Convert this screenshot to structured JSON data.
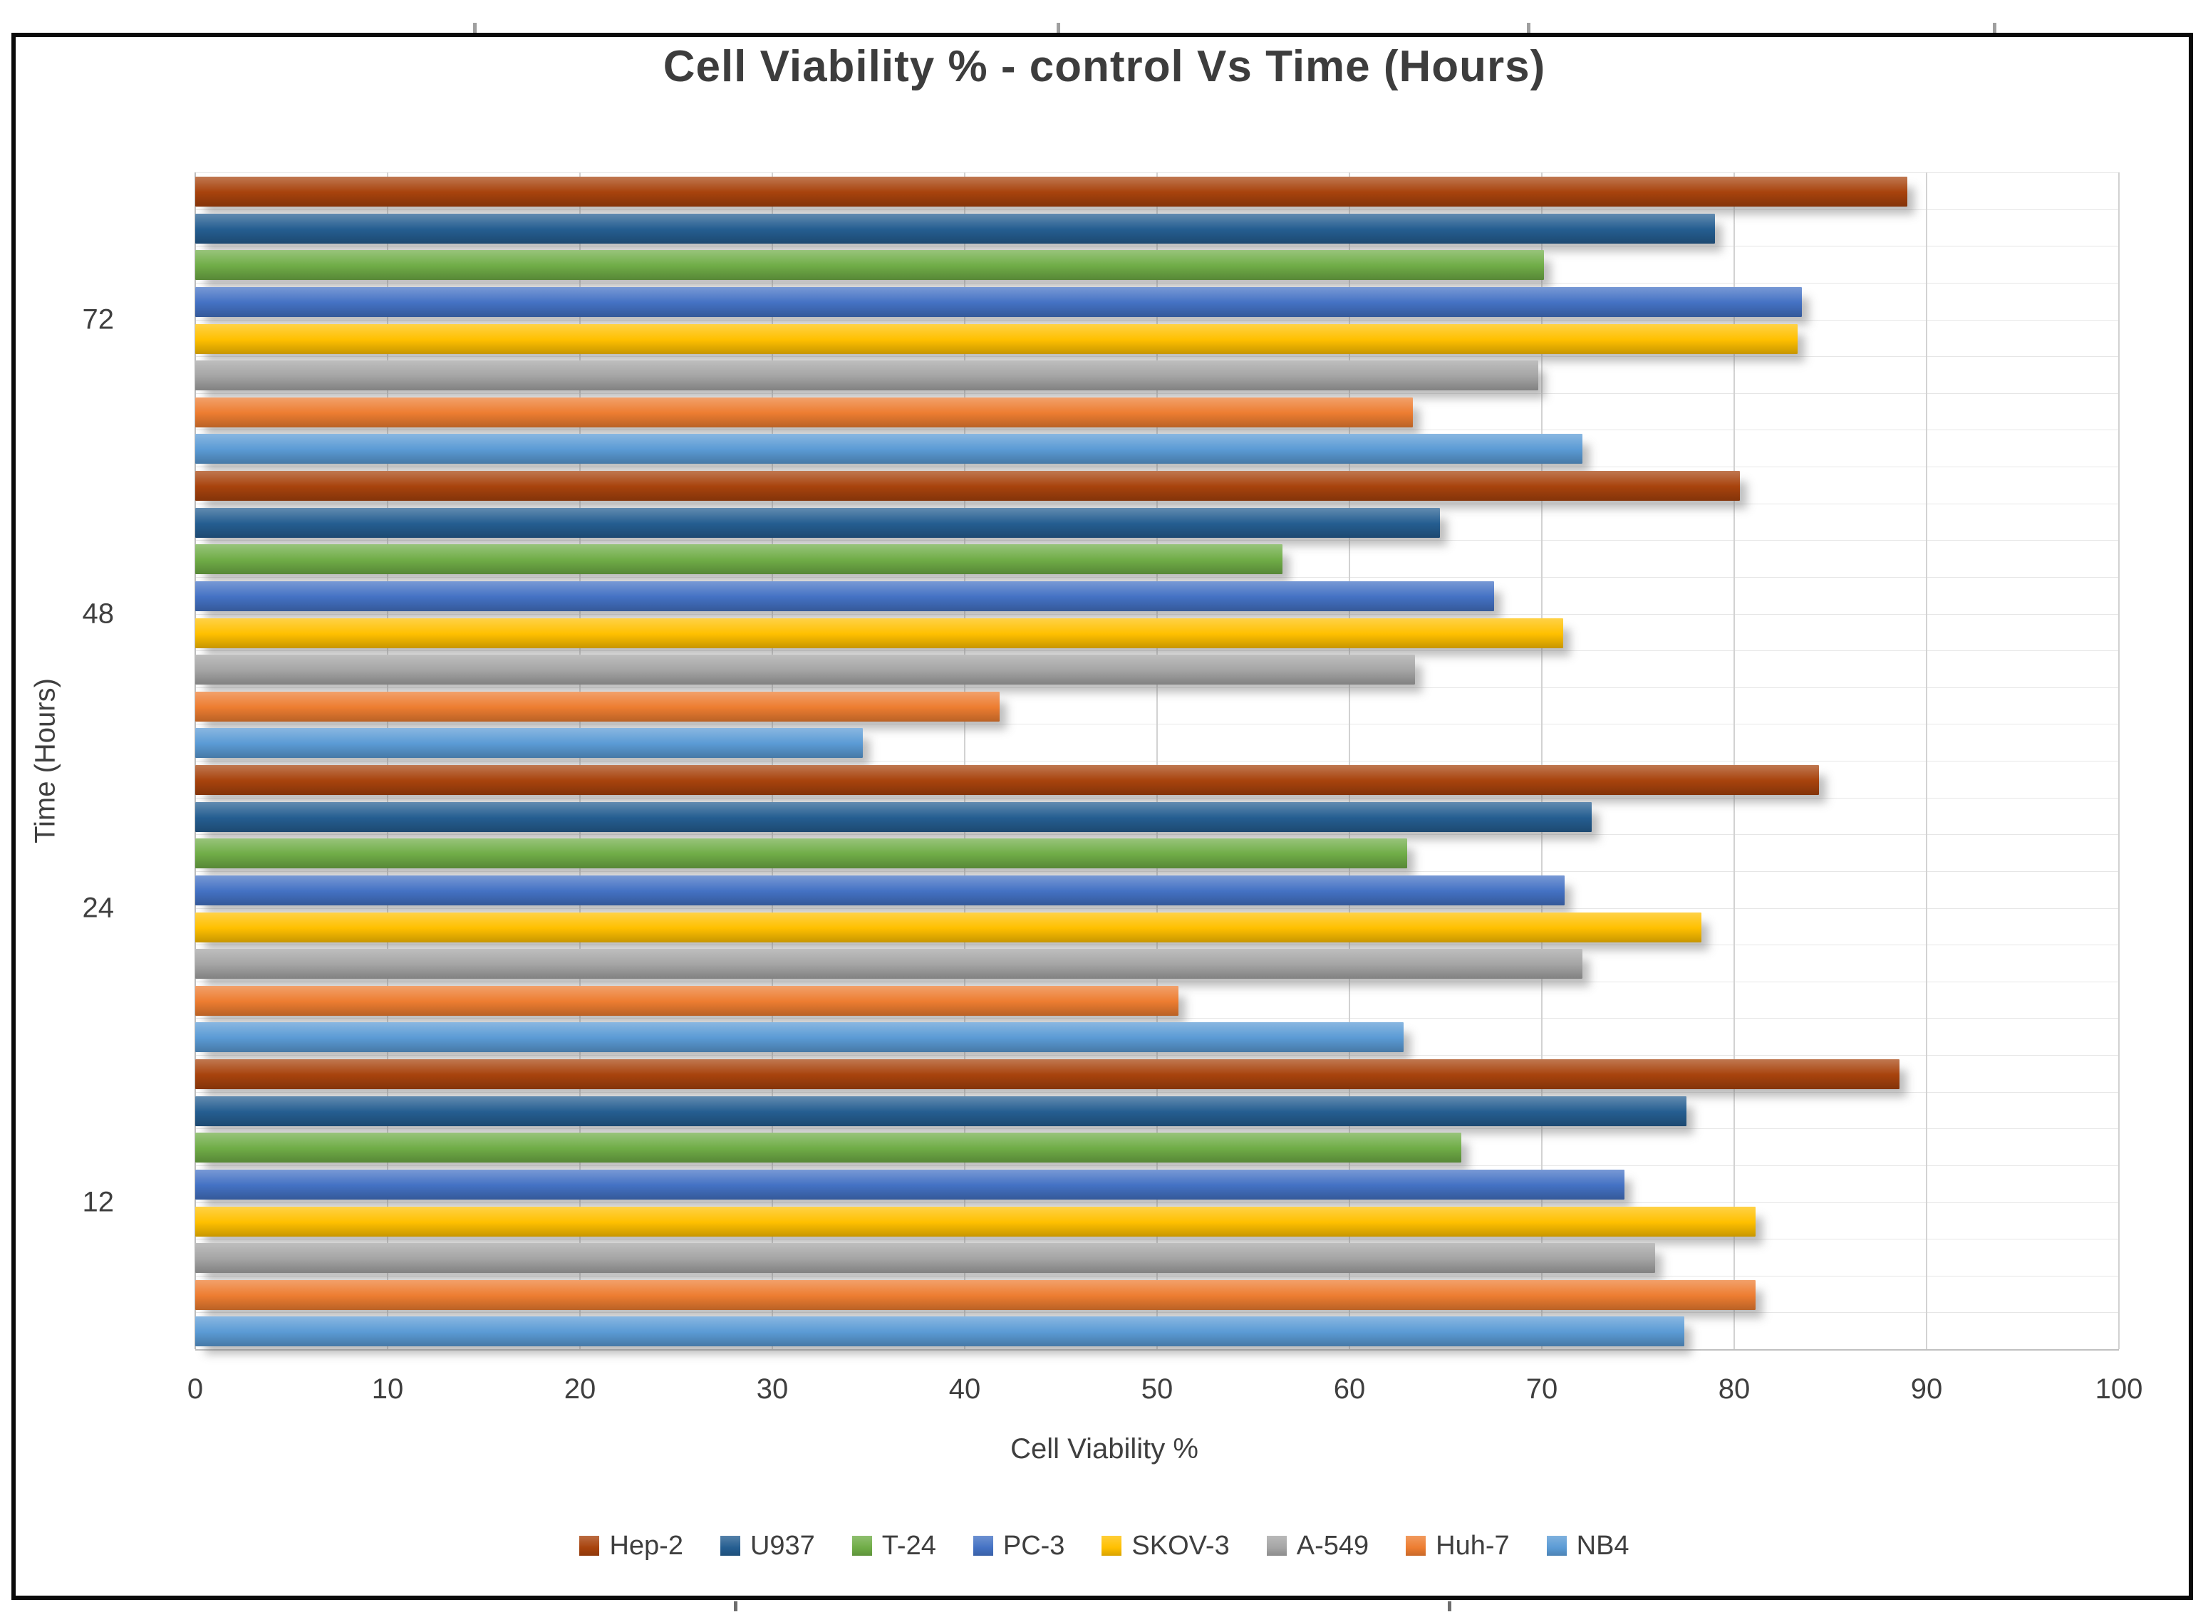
{
  "page": {
    "background": "#ffffff",
    "frame_border_color": "#0a0a0a",
    "crop_marks_top_x": [
      664,
      1483,
      2143,
      2797
    ],
    "crop_marks_bottom_x": [
      1030,
      2032
    ]
  },
  "chart_data": {
    "type": "bar",
    "orientation": "horizontal",
    "title": "Cell Viability % - control Vs Time (Hours)",
    "xlabel": "Cell Viability %",
    "ylabel": "Time (Hours)",
    "xlim": [
      0,
      100
    ],
    "xticks": [
      "0",
      "10",
      "20",
      "30",
      "40",
      "50",
      "60",
      "70",
      "80",
      "90",
      "100"
    ],
    "grid": "vertical major gridlines + faint horizontal category slot lines",
    "legend_position": "bottom",
    "categories": [
      "72",
      "48",
      "24",
      "12"
    ],
    "category_axis_note": "categories listed top-to-bottom as drawn; values arrays align to this order",
    "series": [
      {
        "name": "Hep-2",
        "color": "#A8430D",
        "values": [
          89.0,
          80.3,
          84.4,
          88.6
        ]
      },
      {
        "name": "U937",
        "color": "#255E91",
        "values": [
          79.0,
          64.7,
          72.6,
          77.5
        ]
      },
      {
        "name": "T-24",
        "color": "#70AD47",
        "values": [
          70.1,
          56.5,
          63.0,
          65.8
        ]
      },
      {
        "name": "PC-3",
        "color": "#4472C4",
        "values": [
          83.5,
          67.5,
          71.2,
          74.3
        ]
      },
      {
        "name": "SKOV-3",
        "color": "#FFC000",
        "values": [
          83.3,
          71.1,
          78.3,
          81.1
        ]
      },
      {
        "name": "A-549",
        "color": "#A5A5A5",
        "values": [
          69.8,
          63.4,
          72.1,
          75.9
        ]
      },
      {
        "name": "Huh-7",
        "color": "#ED7D31",
        "values": [
          63.3,
          41.8,
          51.1,
          81.1
        ]
      },
      {
        "name": "NB4",
        "color": "#5B9BD5",
        "values": [
          72.1,
          34.7,
          62.8,
          77.4
        ]
      }
    ],
    "title_color": "#3d3d3d",
    "axis_text_color": "#3f3f3f",
    "gridline_color": "#d2d2d2"
  }
}
